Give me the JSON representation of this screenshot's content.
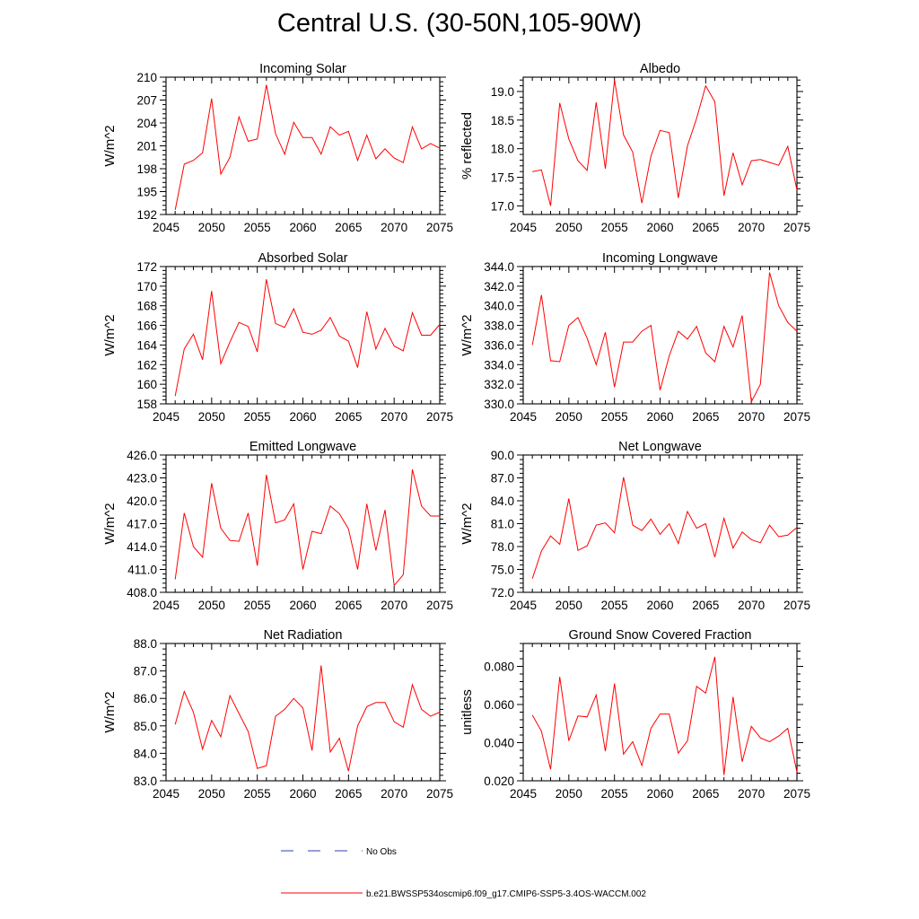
{
  "title": "Central U.S. (30-50N,105-90W)",
  "colors": {
    "series": "#ff0000",
    "obs": "#2f3fb0",
    "axis": "#000000"
  },
  "legend": {
    "obs_label": "No Obs",
    "model_label": "b.e21.BWSSP534oscmip6.f09_g17.CMIP6-SSP5-3.4OS-WACCM.002"
  },
  "chart_data": [
    {
      "type": "line",
      "title": "Incoming Solar",
      "ylabel": "W/m^2",
      "xlim": [
        2045,
        2075
      ],
      "ylim": [
        192,
        210
      ],
      "yticks": [
        192,
        195,
        198,
        201,
        204,
        207,
        210
      ],
      "ytick_labels": [
        "192",
        "195",
        "198",
        "201",
        "204",
        "207",
        "210"
      ],
      "xticks": [
        2045,
        2050,
        2055,
        2060,
        2065,
        2070,
        2075
      ],
      "xtick_labels": [
        "2045",
        "2050",
        "2055",
        "2060",
        "2065",
        "2070",
        "2075"
      ],
      "x": [
        2046,
        2047,
        2048,
        2049,
        2050,
        2051,
        2052,
        2053,
        2054,
        2055,
        2056,
        2057,
        2058,
        2059,
        2060,
        2061,
        2062,
        2063,
        2064,
        2065,
        2066,
        2067,
        2068,
        2069,
        2070,
        2071,
        2072,
        2073,
        2074,
        2075
      ],
      "values": [
        192.6,
        198.6,
        199.1,
        200.1,
        207.2,
        197.3,
        199.5,
        204.8,
        201.6,
        201.9,
        209.0,
        202.6,
        199.9,
        204.1,
        202.1,
        202.1,
        199.9,
        203.5,
        202.4,
        202.9,
        199.1,
        202.4,
        199.3,
        200.6,
        199.4,
        198.8,
        203.5,
        200.6,
        201.3,
        200.7
      ]
    },
    {
      "type": "line",
      "title": "Albedo",
      "ylabel": "% reflected",
      "xlim": [
        2045,
        2075
      ],
      "ylim": [
        16.85,
        19.25
      ],
      "yticks": [
        17.0,
        17.5,
        18.0,
        18.5,
        19.0
      ],
      "ytick_labels": [
        "17.0",
        "17.5",
        "18.0",
        "18.5",
        "19.0"
      ],
      "xticks": [
        2045,
        2050,
        2055,
        2060,
        2065,
        2070,
        2075
      ],
      "xtick_labels": [
        "2045",
        "2050",
        "2055",
        "2060",
        "2065",
        "2070",
        "2075"
      ],
      "x": [
        2046,
        2047,
        2048,
        2049,
        2050,
        2051,
        2052,
        2053,
        2054,
        2055,
        2056,
        2057,
        2058,
        2059,
        2060,
        2061,
        2062,
        2063,
        2064,
        2065,
        2066,
        2067,
        2068,
        2069,
        2070,
        2071,
        2072,
        2073,
        2074,
        2075
      ],
      "values": [
        17.6,
        17.63,
        17.0,
        18.8,
        18.17,
        17.79,
        17.62,
        18.81,
        17.65,
        19.2,
        18.24,
        17.94,
        17.05,
        17.87,
        18.32,
        18.28,
        17.14,
        18.05,
        18.53,
        19.1,
        18.82,
        17.18,
        17.93,
        17.37,
        17.79,
        17.81,
        17.76,
        17.71,
        18.04,
        17.28
      ]
    },
    {
      "type": "line",
      "title": "Absorbed Solar",
      "ylabel": "W/m^2",
      "xlim": [
        2045,
        2075
      ],
      "ylim": [
        158,
        172
      ],
      "yticks": [
        158,
        160,
        162,
        164,
        166,
        168,
        170,
        172
      ],
      "ytick_labels": [
        "158",
        "160",
        "162",
        "164",
        "166",
        "168",
        "170",
        "172"
      ],
      "xticks": [
        2045,
        2050,
        2055,
        2060,
        2065,
        2070,
        2075
      ],
      "xtick_labels": [
        "2045",
        "2050",
        "2055",
        "2060",
        "2065",
        "2070",
        "2075"
      ],
      "x": [
        2046,
        2047,
        2048,
        2049,
        2050,
        2051,
        2052,
        2053,
        2054,
        2055,
        2056,
        2057,
        2058,
        2059,
        2060,
        2061,
        2062,
        2063,
        2064,
        2065,
        2066,
        2067,
        2068,
        2069,
        2070,
        2071,
        2072,
        2073,
        2074,
        2075
      ],
      "values": [
        158.8,
        163.6,
        165.1,
        162.5,
        169.5,
        162.1,
        164.3,
        166.3,
        165.9,
        163.3,
        170.7,
        166.2,
        165.8,
        167.7,
        165.3,
        165.1,
        165.5,
        166.8,
        164.9,
        164.4,
        161.7,
        167.4,
        163.6,
        165.7,
        163.9,
        163.4,
        167.3,
        165.0,
        165.0,
        166.1
      ]
    },
    {
      "type": "line",
      "title": "Incoming Longwave",
      "ylabel": "W/m^2",
      "xlim": [
        2045,
        2075
      ],
      "ylim": [
        330,
        344
      ],
      "yticks": [
        330,
        332,
        334,
        336,
        338,
        340,
        342,
        344
      ],
      "ytick_labels": [
        "330.0",
        "332.0",
        "334.0",
        "336.0",
        "338.0",
        "340.0",
        "342.0",
        "344.0"
      ],
      "xticks": [
        2045,
        2050,
        2055,
        2060,
        2065,
        2070,
        2075
      ],
      "xtick_labels": [
        "2045",
        "2050",
        "2055",
        "2060",
        "2065",
        "2070",
        "2075"
      ],
      "x": [
        2046,
        2047,
        2048,
        2049,
        2050,
        2051,
        2052,
        2053,
        2054,
        2055,
        2056,
        2057,
        2058,
        2059,
        2060,
        2061,
        2062,
        2063,
        2064,
        2065,
        2066,
        2067,
        2068,
        2069,
        2070,
        2071,
        2072,
        2073,
        2074,
        2075
      ],
      "values": [
        336.0,
        341.1,
        334.4,
        334.3,
        338.0,
        338.8,
        336.7,
        334.0,
        337.3,
        331.7,
        336.3,
        336.3,
        337.4,
        338.0,
        331.4,
        334.9,
        337.4,
        336.6,
        337.9,
        335.2,
        334.3,
        337.9,
        335.8,
        339.0,
        330.2,
        332.0,
        343.4,
        340.0,
        338.3,
        337.4
      ]
    },
    {
      "type": "line",
      "title": "Emitted Longwave",
      "ylabel": "W/m^2",
      "xlim": [
        2045,
        2075
      ],
      "ylim": [
        408,
        426
      ],
      "yticks": [
        408,
        411,
        414,
        417,
        420,
        423,
        426
      ],
      "ytick_labels": [
        "408.0",
        "411.0",
        "414.0",
        "417.0",
        "420.0",
        "423.0",
        "426.0"
      ],
      "xticks": [
        2045,
        2050,
        2055,
        2060,
        2065,
        2070,
        2075
      ],
      "xtick_labels": [
        "2045",
        "2050",
        "2055",
        "2060",
        "2065",
        "2070",
        "2075"
      ],
      "x": [
        2046,
        2047,
        2048,
        2049,
        2050,
        2051,
        2052,
        2053,
        2054,
        2055,
        2056,
        2057,
        2058,
        2059,
        2060,
        2061,
        2062,
        2063,
        2064,
        2065,
        2066,
        2067,
        2068,
        2069,
        2070,
        2071,
        2072,
        2073,
        2074,
        2075
      ],
      "values": [
        409.7,
        418.4,
        414.0,
        412.6,
        422.3,
        416.4,
        414.8,
        414.7,
        418.4,
        411.5,
        423.4,
        417.1,
        417.5,
        419.6,
        411.0,
        416.0,
        415.7,
        419.3,
        418.3,
        416.3,
        411.0,
        419.6,
        413.5,
        418.8,
        408.9,
        410.3,
        424.1,
        419.3,
        418.0,
        418.0
      ]
    },
    {
      "type": "line",
      "title": "Net Longwave",
      "ylabel": "W/m^2",
      "xlim": [
        2045,
        2075
      ],
      "ylim": [
        72,
        90
      ],
      "yticks": [
        72,
        75,
        78,
        81,
        84,
        87,
        90
      ],
      "ytick_labels": [
        "72.0",
        "75.0",
        "78.0",
        "81.0",
        "84.0",
        "87.0",
        "90.0"
      ],
      "xticks": [
        2045,
        2050,
        2055,
        2060,
        2065,
        2070,
        2075
      ],
      "xtick_labels": [
        "2045",
        "2050",
        "2055",
        "2060",
        "2065",
        "2070",
        "2075"
      ],
      "x": [
        2046,
        2047,
        2048,
        2049,
        2050,
        2051,
        2052,
        2053,
        2054,
        2055,
        2056,
        2057,
        2058,
        2059,
        2060,
        2061,
        2062,
        2063,
        2064,
        2065,
        2066,
        2067,
        2068,
        2069,
        2070,
        2071,
        2072,
        2073,
        2074,
        2075
      ],
      "values": [
        73.8,
        77.4,
        79.4,
        78.3,
        84.3,
        77.5,
        78.1,
        80.8,
        81.1,
        79.8,
        87.1,
        80.8,
        80.1,
        81.6,
        79.6,
        81.0,
        78.4,
        82.6,
        80.4,
        81.0,
        76.6,
        81.7,
        77.8,
        79.9,
        78.9,
        78.5,
        80.8,
        79.3,
        79.5,
        80.5
      ]
    },
    {
      "type": "line",
      "title": "Net Radiation",
      "ylabel": "W/m^2",
      "xlim": [
        2045,
        2075
      ],
      "ylim": [
        83,
        88
      ],
      "yticks": [
        83,
        84,
        85,
        86,
        87,
        88
      ],
      "ytick_labels": [
        "83.0",
        "84.0",
        "85.0",
        "86.0",
        "87.0",
        "88.0"
      ],
      "xticks": [
        2045,
        2050,
        2055,
        2060,
        2065,
        2070,
        2075
      ],
      "xtick_labels": [
        "2045",
        "2050",
        "2055",
        "2060",
        "2065",
        "2070",
        "2075"
      ],
      "x": [
        2046,
        2047,
        2048,
        2049,
        2050,
        2051,
        2052,
        2053,
        2054,
        2055,
        2056,
        2057,
        2058,
        2059,
        2060,
        2061,
        2062,
        2063,
        2064,
        2065,
        2066,
        2067,
        2068,
        2069,
        2070,
        2071,
        2072,
        2073,
        2074,
        2075
      ],
      "values": [
        85.05,
        86.25,
        85.5,
        84.15,
        85.2,
        84.6,
        86.1,
        85.45,
        84.8,
        83.45,
        83.55,
        85.35,
        85.6,
        86.0,
        85.65,
        84.1,
        87.2,
        84.05,
        84.55,
        83.35,
        85.0,
        85.7,
        85.85,
        85.85,
        85.15,
        84.95,
        86.5,
        85.6,
        85.35,
        85.5
      ]
    },
    {
      "type": "line",
      "title": "Ground Snow Covered Fraction",
      "ylabel": "unitless",
      "xlim": [
        2045,
        2075
      ],
      "ylim": [
        0.02,
        0.092
      ],
      "yticks": [
        0.02,
        0.04,
        0.06,
        0.08
      ],
      "ytick_labels": [
        "0.020",
        "0.040",
        "0.060",
        "0.080"
      ],
      "xticks": [
        2045,
        2050,
        2055,
        2060,
        2065,
        2070,
        2075
      ],
      "xtick_labels": [
        "2045",
        "2050",
        "2055",
        "2060",
        "2065",
        "2070",
        "2075"
      ],
      "x": [
        2046,
        2047,
        2048,
        2049,
        2050,
        2051,
        2052,
        2053,
        2054,
        2055,
        2056,
        2057,
        2058,
        2059,
        2060,
        2061,
        2062,
        2063,
        2064,
        2065,
        2066,
        2067,
        2068,
        2069,
        2070,
        2071,
        2072,
        2073,
        2074,
        2075
      ],
      "values": [
        0.0545,
        0.046,
        0.026,
        0.0745,
        0.041,
        0.054,
        0.0535,
        0.065,
        0.0355,
        0.071,
        0.034,
        0.0405,
        0.028,
        0.0475,
        0.055,
        0.055,
        0.0345,
        0.041,
        0.0695,
        0.066,
        0.085,
        0.023,
        0.064,
        0.03,
        0.0485,
        0.0425,
        0.0405,
        0.0435,
        0.0475,
        0.0245
      ]
    }
  ]
}
